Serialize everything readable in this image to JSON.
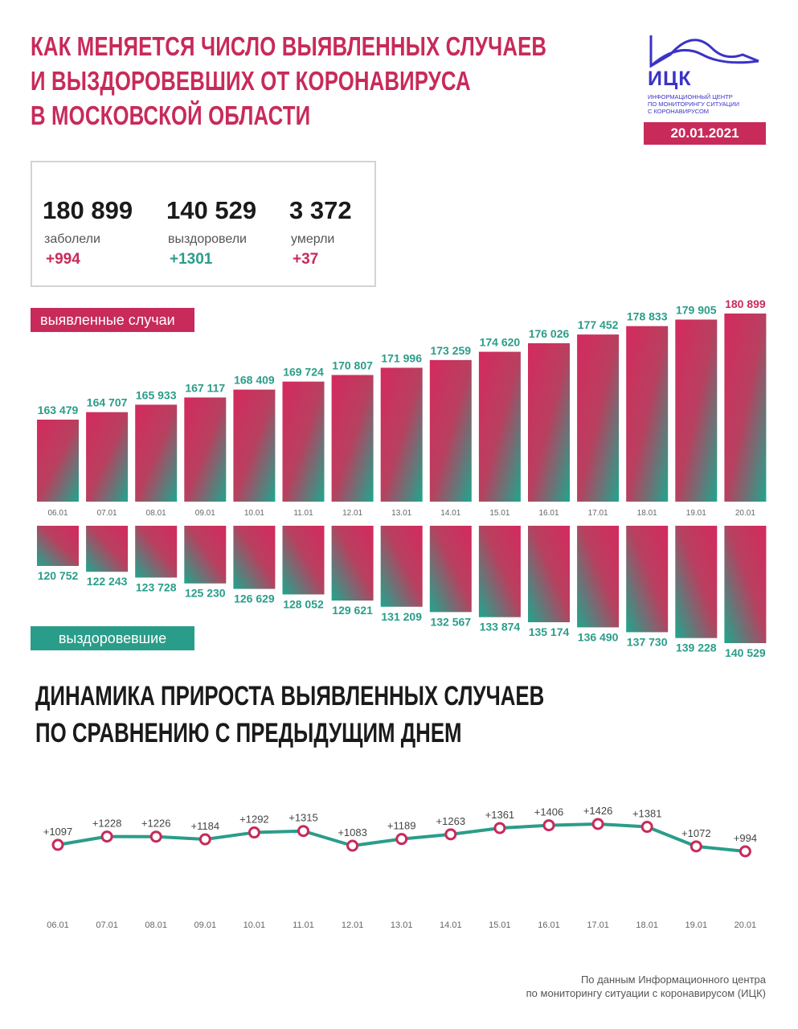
{
  "header": {
    "title_lines": [
      "Как меняется число выявленных случаев",
      "и выздоровевших от коронавируса",
      "в Московской области"
    ],
    "logo": {
      "abbr": "ИЦК",
      "org_lines": [
        "Информационный центр",
        "по мониторингу ситуации",
        "с коронавирусом"
      ]
    },
    "date": "20.01.2021"
  },
  "summary": {
    "stats": [
      {
        "value": "180 899",
        "label": "заболели",
        "delta": "+994"
      },
      {
        "value": "140 529",
        "label": "выздоровели",
        "delta": "+1301"
      },
      {
        "value": "3 372",
        "label": "умерли",
        "delta": "+37"
      }
    ]
  },
  "labels": {
    "cases": "выявленные случаи",
    "recovered": "выздоровевшие"
  },
  "subtitle_lines": [
    "Динамика прироста выявленных случаев",
    "по сравнению с предыдущим днем"
  ],
  "footnote_lines": [
    "По данным Информационного центра",
    "по мониторингу ситуации с коронавирусом (ИЦК)"
  ],
  "colors": {
    "pink": "#c82a5a",
    "teal": "#2a9d8a",
    "brand_blue": "#3b33c7",
    "border": "#d3d3d3"
  },
  "chart_data": [
    {
      "type": "bar",
      "categories": [
        "06.01",
        "07.01",
        "08.01",
        "09.01",
        "10.01",
        "11.01",
        "12.01",
        "13.01",
        "14.01",
        "15.01",
        "16.01",
        "17.01",
        "18.01",
        "19.01",
        "20.01"
      ],
      "series": [
        {
          "name": "выявленные случаи",
          "values": [
            163479,
            164707,
            165933,
            167117,
            168409,
            169724,
            170807,
            171996,
            173259,
            174620,
            176026,
            177452,
            178833,
            179905,
            180899
          ],
          "value_labels": [
            "163 479",
            "164 707",
            "165 933",
            "167 117",
            "168 409",
            "169 724",
            "170 807",
            "171 996",
            "173 259",
            "174 620",
            "176 026",
            "177 452",
            "178 833",
            "179 905",
            "180 899"
          ]
        },
        {
          "name": "выздоровевшие",
          "values": [
            120752,
            122243,
            123728,
            125230,
            126629,
            128052,
            129621,
            131209,
            132567,
            133874,
            135174,
            136490,
            137730,
            139228,
            140529
          ],
          "value_labels": [
            "120 752",
            "122 243",
            "123 728",
            "125 230",
            "126 629",
            "128 052",
            "129 621",
            "131 209",
            "132 567",
            "133 874",
            "135 174",
            "136 490",
            "137 730",
            "139 228",
            "140 529"
          ]
        }
      ]
    },
    {
      "type": "line",
      "categories": [
        "06.01",
        "07.01",
        "08.01",
        "09.01",
        "10.01",
        "11.01",
        "12.01",
        "13.01",
        "14.01",
        "15.01",
        "16.01",
        "17.01",
        "18.01",
        "19.01",
        "20.01"
      ],
      "series": [
        {
          "values": [
            1097,
            1228,
            1226,
            1184,
            1292,
            1315,
            1083,
            1189,
            1263,
            1361,
            1406,
            1426,
            1381,
            1072,
            994
          ],
          "value_labels": [
            "+1097",
            "+1228",
            "+1226",
            "+1184",
            "+1292",
            "+1315",
            "+1083",
            "+1189",
            "+1263",
            "+1361",
            "+1406",
            "+1426",
            "+1381",
            "+1072",
            "+994"
          ]
        }
      ]
    }
  ]
}
